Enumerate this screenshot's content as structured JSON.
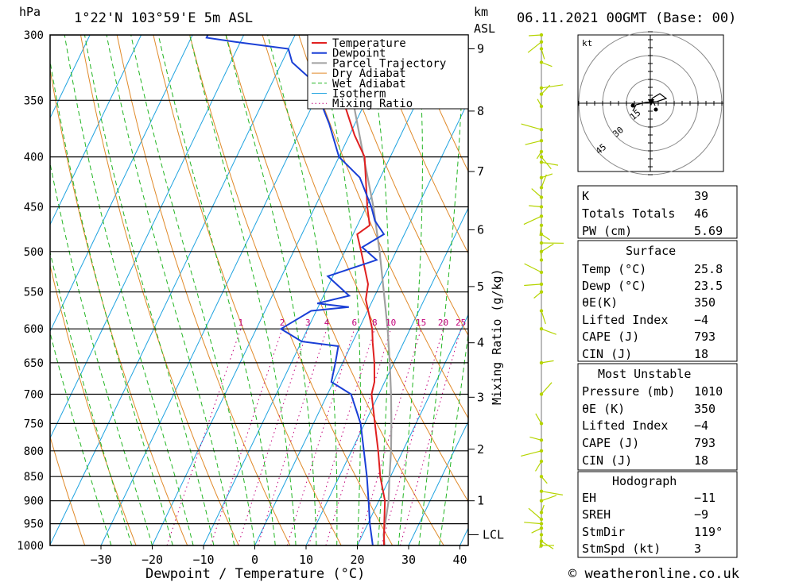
{
  "header": {
    "hpa_unit": "hPa",
    "location": "1°22'N  103°59'E  5m  ASL",
    "km_unit": "km",
    "asl_unit": "ASL",
    "datetime": "06.11.2021  00GMT  (Base: 00)"
  },
  "footer": {
    "copyright": "© weatheronline.co.uk"
  },
  "colors": {
    "temperature": "#e02020",
    "dewpoint": "#1a3fd6",
    "parcel": "#a0a0a0",
    "dry_adiabat": "#e08a2a",
    "wet_adiabat": "#22b522",
    "isotherm": "#1fa3e0",
    "mixing_ratio": "#c2007a",
    "wind": "#b5d400"
  },
  "chart_data": {
    "type": "skew-t",
    "xlabel": "Dewpoint / Temperature (°C)",
    "x_ticks": [
      -30,
      -20,
      -10,
      0,
      10,
      20,
      30,
      40
    ],
    "x_tick_labels": [
      "−30",
      "−20",
      "−10",
      "0",
      "10",
      "20",
      "30",
      "40"
    ],
    "pressure_levels": [
      300,
      350,
      400,
      450,
      500,
      550,
      600,
      650,
      700,
      750,
      800,
      850,
      900,
      950,
      1000
    ],
    "km_ticks": [
      {
        "km": 1,
        "p": 900
      },
      {
        "km": 2,
        "p": 797
      },
      {
        "km": 3,
        "p": 705
      },
      {
        "km": 4,
        "p": 620
      },
      {
        "km": 5,
        "p": 543
      },
      {
        "km": 6,
        "p": 475
      },
      {
        "km": 7,
        "p": 414
      },
      {
        "km": 8,
        "p": 359
      },
      {
        "km": 9,
        "p": 310
      }
    ],
    "lcl": {
      "label": "LCL",
      "p": 975
    },
    "mixing_ratio_label": "Mixing Ratio (g/kg)",
    "mixing_ratio_values": [
      1,
      2,
      3,
      4,
      6,
      8,
      10,
      15,
      20,
      25
    ],
    "mixing_ratio_labels": [
      "1",
      "2",
      "3",
      "4",
      "6",
      "8",
      "10",
      "15",
      "20",
      "25"
    ],
    "legend": [
      "Temperature",
      "Dewpoint",
      "Parcel Trajectory",
      "Dry Adiabat",
      "Wet Adiabat",
      "Isotherm",
      "Mixing Ratio"
    ],
    "temperature": [
      [
        1010,
        25.8
      ],
      [
        1000,
        25.2
      ],
      [
        950,
        23.2
      ],
      [
        900,
        21.2
      ],
      [
        850,
        18.0
      ],
      [
        800,
        15.2
      ],
      [
        750,
        12.0
      ],
      [
        700,
        8.6
      ],
      [
        680,
        8.0
      ],
      [
        650,
        6.2
      ],
      [
        620,
        4.0
      ],
      [
        600,
        2.6
      ],
      [
        560,
        -1.4
      ],
      [
        540,
        -2.4
      ],
      [
        500,
        -6.8
      ],
      [
        480,
        -9.2
      ],
      [
        470,
        -7.6
      ],
      [
        450,
        -9.8
      ],
      [
        400,
        -15.0
      ],
      [
        380,
        -19.0
      ],
      [
        350,
        -24.5
      ]
    ],
    "dewpoint": [
      [
        1010,
        23.5
      ],
      [
        1000,
        23.0
      ],
      [
        950,
        20.4
      ],
      [
        900,
        18.0
      ],
      [
        850,
        15.4
      ],
      [
        800,
        12.4
      ],
      [
        750,
        9.2
      ],
      [
        700,
        4.6
      ],
      [
        680,
        -0.4
      ],
      [
        650,
        -1.4
      ],
      [
        625,
        -2.4
      ],
      [
        618,
        -10.0
      ],
      [
        600,
        -15.2
      ],
      [
        575,
        -11.0
      ],
      [
        570,
        -4.0
      ],
      [
        565,
        -10.5
      ],
      [
        555,
        -5.0
      ],
      [
        530,
        -11.0
      ],
      [
        510,
        -3.0
      ],
      [
        495,
        -7.0
      ],
      [
        480,
        -4.0
      ],
      [
        465,
        -7.0
      ],
      [
        450,
        -9.0
      ],
      [
        420,
        -14.0
      ],
      [
        400,
        -20.0
      ],
      [
        370,
        -25.0
      ],
      [
        355,
        -28.0
      ],
      [
        345,
        -29.0
      ],
      [
        335,
        -32.0
      ],
      [
        320,
        -38.0
      ],
      [
        310,
        -40.0
      ],
      [
        305,
        -51.0
      ],
      [
        302,
        -57.0
      ],
      [
        300,
        -57.0
      ]
    ],
    "parcel": [
      [
        1010,
        25.8
      ],
      [
        975,
        24.1
      ],
      [
        900,
        21.9
      ],
      [
        850,
        19.8
      ],
      [
        800,
        17.7
      ],
      [
        750,
        15.2
      ],
      [
        700,
        12.4
      ],
      [
        650,
        9.2
      ],
      [
        600,
        5.6
      ],
      [
        550,
        1.4
      ],
      [
        500,
        -3.2
      ],
      [
        450,
        -8.6
      ],
      [
        400,
        -15.2
      ],
      [
        350,
        -22.6
      ]
    ],
    "hodograph": {
      "unit": "kt",
      "rings": [
        "15",
        "30",
        "45"
      ]
    },
    "wind_barbs": [
      1000,
      990,
      975,
      960,
      950,
      940,
      925,
      900,
      880,
      850,
      820,
      800,
      780,
      750,
      700,
      650,
      600,
      575,
      550,
      540,
      525,
      510,
      500,
      490,
      480,
      470,
      460,
      450,
      440,
      430,
      420,
      405,
      400,
      395,
      385,
      375,
      355,
      345,
      340,
      320,
      310,
      305,
      300
    ],
    "indices": {
      "k_label": "K",
      "k": "39",
      "tt_label": "Totals Totals",
      "tt": "46",
      "pw_label": "PW (cm)",
      "pw": "5.69"
    },
    "surface": {
      "title": "Surface",
      "temp_label": "Temp (°C)",
      "temp": "25.8",
      "dewp_label": "Dewp (°C)",
      "dewp": "23.5",
      "theta_label": "θE(K)",
      "theta": "350",
      "li_label": "Lifted Index",
      "li": "−4",
      "cape_label": "CAPE (J)",
      "cape": "793",
      "cin_label": "CIN (J)",
      "cin": "18"
    },
    "most_unstable": {
      "title": "Most Unstable",
      "pres_label": "Pressure (mb)",
      "pres": "1010",
      "theta_label": "θE (K)",
      "theta": "350",
      "li_label": "Lifted Index",
      "li": "−4",
      "cape_label": "CAPE (J)",
      "cape": "793",
      "cin_label": "CIN (J)",
      "cin": "18"
    },
    "hodograph_params": {
      "title": "Hodograph",
      "eh_label": "EH",
      "eh": "−11",
      "sreh_label": "SREH",
      "sreh": "−9",
      "stmdir_label": "StmDir",
      "stmdir": "119°",
      "stmspd_label": "StmSpd (kt)",
      "stmspd": "3"
    }
  }
}
